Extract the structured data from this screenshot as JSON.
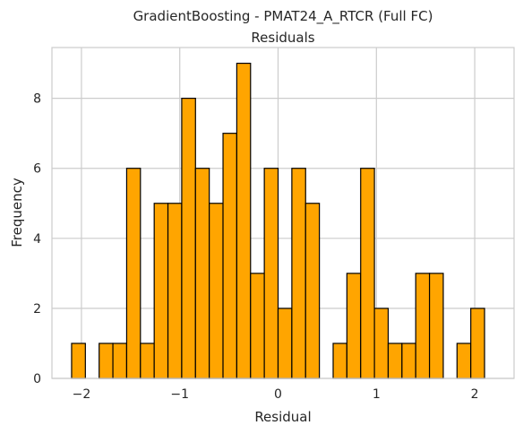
{
  "chart_data": {
    "type": "bar",
    "histogram": true,
    "title": "GradientBoosting - PMAT24_A_RTCR (Full FC)",
    "subtitle": "Residuals",
    "xlabel": "Residual",
    "ylabel": "Frequency",
    "xlim": [
      -2.3,
      2.4
    ],
    "ylim": [
      0,
      9.45
    ],
    "grid": true,
    "bar_color": "#ffa500",
    "edge_color": "#000000",
    "bins": [
      {
        "x0": -2.1,
        "x1": -1.96,
        "count": 1
      },
      {
        "x0": -1.96,
        "x1": -1.82,
        "count": 0
      },
      {
        "x0": -1.82,
        "x1": -1.68,
        "count": 1
      },
      {
        "x0": -1.68,
        "x1": -1.54,
        "count": 1
      },
      {
        "x0": -1.54,
        "x1": -1.4,
        "count": 6
      },
      {
        "x0": -1.4,
        "x1": -1.26,
        "count": 1
      },
      {
        "x0": -1.26,
        "x1": -1.12,
        "count": 5
      },
      {
        "x0": -1.12,
        "x1": -0.98,
        "count": 5
      },
      {
        "x0": -0.98,
        "x1": -0.84,
        "count": 8
      },
      {
        "x0": -0.84,
        "x1": -0.7,
        "count": 6
      },
      {
        "x0": -0.7,
        "x1": -0.56,
        "count": 5
      },
      {
        "x0": -0.56,
        "x1": -0.42,
        "count": 7
      },
      {
        "x0": -0.42,
        "x1": -0.28,
        "count": 9
      },
      {
        "x0": -0.28,
        "x1": -0.14,
        "count": 3
      },
      {
        "x0": -0.14,
        "x1": 0.0,
        "count": 6
      },
      {
        "x0": 0.0,
        "x1": 0.14,
        "count": 2
      },
      {
        "x0": 0.14,
        "x1": 0.28,
        "count": 6
      },
      {
        "x0": 0.28,
        "x1": 0.42,
        "count": 5
      },
      {
        "x0": 0.42,
        "x1": 0.56,
        "count": 0
      },
      {
        "x0": 0.56,
        "x1": 0.7,
        "count": 1
      },
      {
        "x0": 0.7,
        "x1": 0.84,
        "count": 3
      },
      {
        "x0": 0.84,
        "x1": 0.98,
        "count": 6
      },
      {
        "x0": 0.98,
        "x1": 1.12,
        "count": 2
      },
      {
        "x0": 1.12,
        "x1": 1.26,
        "count": 1
      },
      {
        "x0": 1.26,
        "x1": 1.4,
        "count": 1
      },
      {
        "x0": 1.4,
        "x1": 1.54,
        "count": 3
      },
      {
        "x0": 1.54,
        "x1": 1.68,
        "count": 3
      },
      {
        "x0": 1.68,
        "x1": 1.82,
        "count": 0
      },
      {
        "x0": 1.82,
        "x1": 1.96,
        "count": 1
      },
      {
        "x0": 1.96,
        "x1": 2.1,
        "count": 2
      }
    ],
    "x_ticks": [
      {
        "value": -2,
        "label": "−2"
      },
      {
        "value": -1,
        "label": "−1"
      },
      {
        "value": 0,
        "label": "0"
      },
      {
        "value": 1,
        "label": "1"
      },
      {
        "value": 2,
        "label": "2"
      }
    ],
    "y_ticks": [
      {
        "value": 0,
        "label": "0"
      },
      {
        "value": 2,
        "label": "2"
      },
      {
        "value": 4,
        "label": "4"
      },
      {
        "value": 6,
        "label": "6"
      },
      {
        "value": 8,
        "label": "8"
      }
    ]
  }
}
